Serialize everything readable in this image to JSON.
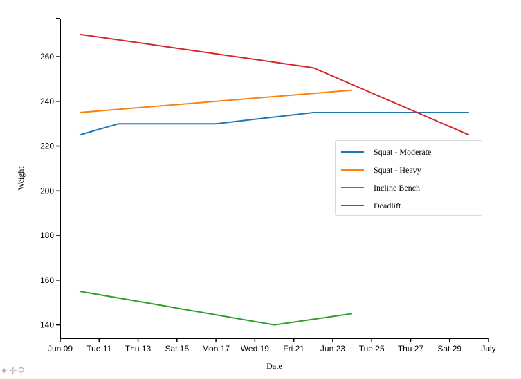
{
  "chart_data": {
    "type": "line",
    "xlabel": "Date",
    "ylabel": "Weight",
    "x_domain": [
      "2015-06-09",
      "2015-07-01"
    ],
    "ylim": [
      134,
      277
    ],
    "y_ticks": [
      140,
      160,
      180,
      200,
      220,
      240,
      260
    ],
    "x_ticks": [
      {
        "date": "2015-06-09",
        "label": "Jun 09"
      },
      {
        "date": "2015-06-11",
        "label": "Tue 11"
      },
      {
        "date": "2015-06-13",
        "label": "Thu 13"
      },
      {
        "date": "2015-06-15",
        "label": "Sat 15"
      },
      {
        "date": "2015-06-17",
        "label": "Mon 17"
      },
      {
        "date": "2015-06-19",
        "label": "Wed 19"
      },
      {
        "date": "2015-06-21",
        "label": "Fri 21"
      },
      {
        "date": "2015-06-23",
        "label": "Jun 23"
      },
      {
        "date": "2015-06-25",
        "label": "Tue 25"
      },
      {
        "date": "2015-06-27",
        "label": "Thu 27"
      },
      {
        "date": "2015-06-29",
        "label": "Sat 29"
      },
      {
        "date": "2015-07-01",
        "label": "July"
      }
    ],
    "grid": false,
    "legend_position": "right",
    "series": [
      {
        "name": "Squat - Moderate",
        "color": "#1f77b4",
        "points": [
          {
            "date": "2015-06-10",
            "value": 225
          },
          {
            "date": "2015-06-12",
            "value": 230
          },
          {
            "date": "2015-06-17",
            "value": 230
          },
          {
            "date": "2015-06-22",
            "value": 235
          },
          {
            "date": "2015-06-30",
            "value": 235
          }
        ]
      },
      {
        "name": "Squat - Heavy",
        "color": "#ff7f0e",
        "points": [
          {
            "date": "2015-06-10",
            "value": 235
          },
          {
            "date": "2015-06-24",
            "value": 245
          }
        ]
      },
      {
        "name": "Incline Bench",
        "color": "#2ca02c",
        "points": [
          {
            "date": "2015-06-10",
            "value": 155
          },
          {
            "date": "2015-06-20",
            "value": 140
          },
          {
            "date": "2015-06-24",
            "value": 145
          }
        ]
      },
      {
        "name": "Deadlift",
        "color": "#d62728",
        "points": [
          {
            "date": "2015-06-10",
            "value": 270
          },
          {
            "date": "2015-06-22",
            "value": 255
          },
          {
            "date": "2015-06-30",
            "value": 225
          }
        ]
      }
    ]
  },
  "toolbar": {
    "icons": [
      "brand-icon",
      "pan-icon",
      "zoom-icon"
    ]
  }
}
